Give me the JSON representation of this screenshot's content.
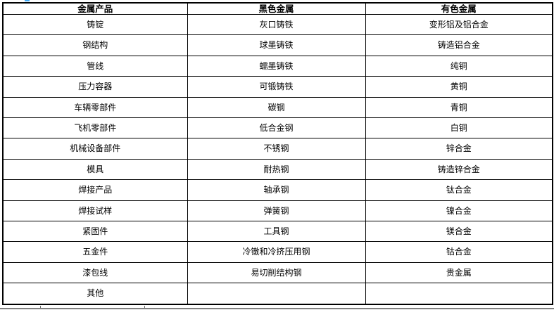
{
  "document": {
    "table": {
      "headers": [
        "金属产品",
        "黑色金属",
        "有色金属"
      ],
      "rows": [
        [
          "铸锭",
          "灰口铸铁",
          "变形铝及铝合金"
        ],
        [
          "钢结构",
          "球墨铸铁",
          "铸造铝合金"
        ],
        [
          "管线",
          "蠕墨铸铁",
          "纯铜"
        ],
        [
          "压力容器",
          "可锻铸铁",
          "黄铜"
        ],
        [
          "车辆零部件",
          "碳钢",
          "青铜"
        ],
        [
          "飞机零部件",
          "低合金钢",
          "白铜"
        ],
        [
          "机械设备部件",
          "不锈钢",
          "锌合金"
        ],
        [
          "模具",
          "耐热钢",
          "铸造锌合金"
        ],
        [
          "焊接产品",
          "轴承钢",
          "钛合金"
        ],
        [
          "焊接试样",
          "弹簧钢",
          "镍合金"
        ],
        [
          "紧固件",
          "工具钢",
          "镁合金"
        ],
        [
          "五金件",
          "冷镦和冷挤压用钢",
          "钴合金"
        ],
        [
          "漆包线",
          "易切削结构钢",
          "贵金属"
        ],
        [
          "其他",
          "",
          ""
        ]
      ]
    }
  },
  "colors": {
    "table_border": "#000000",
    "text": "#000000",
    "background": "#ffffff",
    "partial_next_table_line": "#808080",
    "blue_fragment": "#3fa9f5"
  }
}
